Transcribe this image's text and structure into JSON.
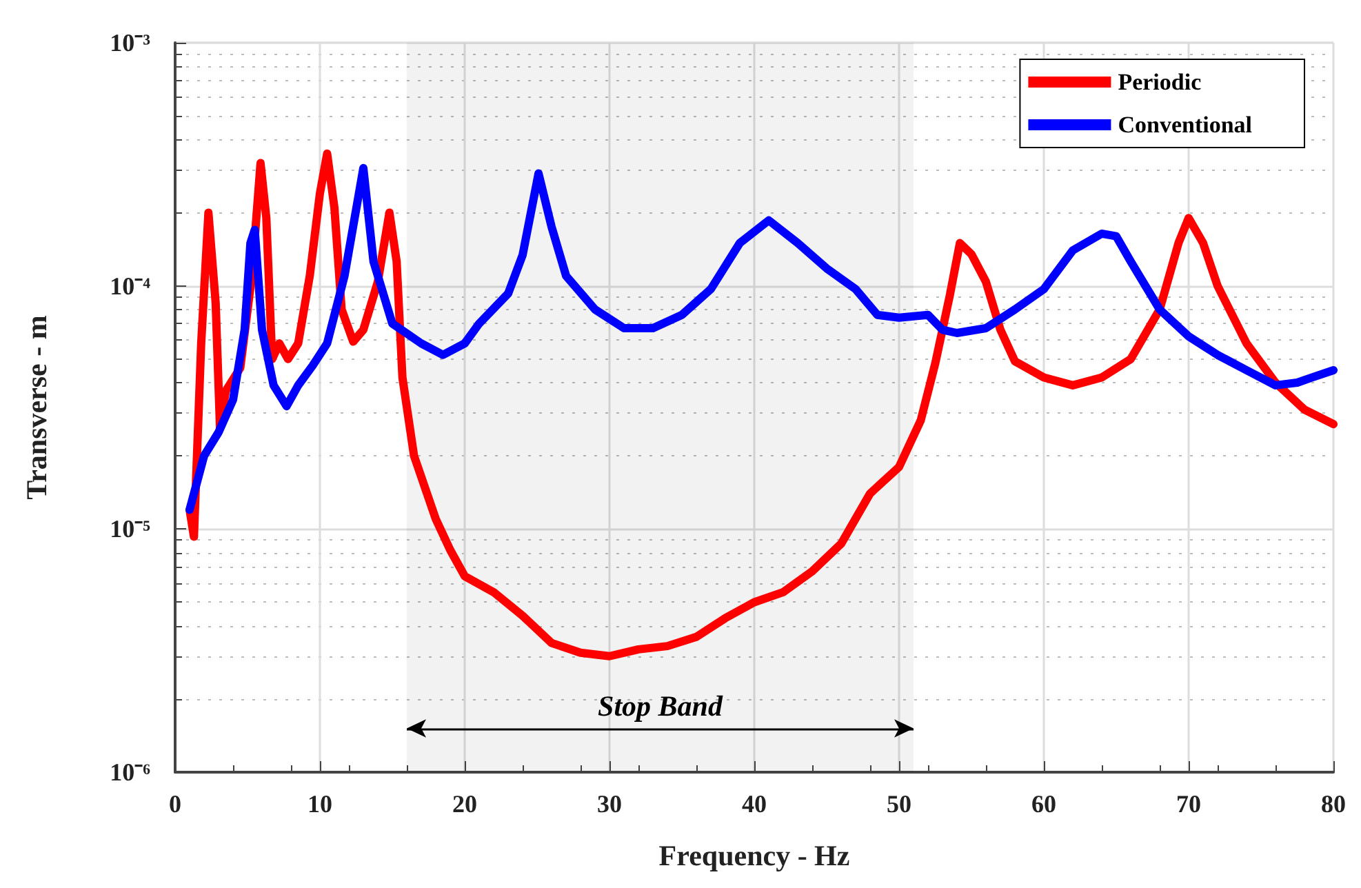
{
  "chart_data": {
    "type": "line",
    "xlabel": "Frequency - Hz",
    "ylabel": "Transverse - m",
    "log": "y",
    "grid": true,
    "legend": "top right",
    "line_style": "solid",
    "marker": "none",
    "xlim": [
      0,
      80
    ],
    "xticks": [
      0,
      10,
      20,
      30,
      40,
      50,
      60,
      70,
      80
    ],
    "ylim": [
      1e-06,
      0.001
    ],
    "yticks": [
      {
        "value": 1e-06,
        "label": "10⁻⁶"
      },
      {
        "value": 1e-05,
        "label": "10⁻⁵"
      },
      {
        "value": 0.0001,
        "label": "10⁻⁴"
      },
      {
        "value": 0.001,
        "label": "10⁻³"
      }
    ],
    "bands": [
      {
        "axis": "x",
        "from": 16,
        "to": 51,
        "label": "Stop Band",
        "color": "#000000"
      }
    ],
    "series": [
      {
        "name": "Periodic",
        "color": "#ff0000",
        "x": [
          1,
          1.3,
          1.8,
          2.3,
          2.8,
          3.1,
          3.5,
          4.5,
          5.3,
          5.9,
          6.3,
          6.7,
          7.2,
          7.8,
          8.5,
          9.3,
          10,
          10.5,
          11,
          11.5,
          12.3,
          13,
          14,
          14.8,
          15.3,
          15.7,
          16.5,
          18,
          19,
          20,
          22,
          24,
          26,
          28,
          30,
          32,
          34,
          36,
          38,
          40,
          42,
          44,
          46,
          48,
          50,
          51.5,
          52.5,
          53.5,
          54.2,
          55,
          56,
          57,
          58,
          60,
          62,
          64,
          66,
          68,
          69.3,
          70,
          71,
          72,
          74,
          76,
          78,
          80
        ],
        "values": [
          1.2e-05,
          9.3e-06,
          5.8e-05,
          0.0002,
          8.5e-05,
          2.6e-05,
          3.7e-05,
          4.6e-05,
          0.00011,
          0.00032,
          0.00019,
          5e-05,
          5.8e-05,
          5e-05,
          5.8e-05,
          0.00011,
          0.00024,
          0.00035,
          0.00021,
          8e-05,
          5.9e-05,
          6.6e-05,
          0.000104,
          0.0002,
          0.000126,
          4.2e-05,
          2e-05,
          1.1e-05,
          8.2e-06,
          6.4e-06,
          5.5e-06,
          4.4e-06,
          3.4e-06,
          3.1e-06,
          3e-06,
          3.2e-06,
          3.3e-06,
          3.6e-06,
          4.3e-06,
          5e-06,
          5.5e-06,
          6.7e-06,
          8.7e-06,
          1.4e-05,
          1.8e-05,
          2.8e-05,
          4.8e-05,
          9.1e-05,
          0.00015,
          0.000135,
          0.000104,
          6.6e-05,
          4.9e-05,
          4.2e-05,
          3.9e-05,
          4.2e-05,
          5e-05,
          8e-05,
          0.00015,
          0.00019,
          0.00015,
          0.0001,
          5.8e-05,
          4e-05,
          3.1e-05,
          2.7e-05
        ]
      },
      {
        "name": "Conventional",
        "color": "#0000ff",
        "x": [
          1,
          2,
          3,
          4,
          4.8,
          5.2,
          5.5,
          6,
          6.8,
          7.7,
          8.5,
          9.5,
          10.5,
          11.7,
          13,
          13.7,
          15,
          17,
          18.5,
          20,
          21,
          23,
          24,
          25.1,
          26,
          27,
          29,
          31,
          33,
          35,
          37,
          39,
          41,
          43,
          45,
          47,
          48.5,
          50,
          52,
          53,
          54,
          56,
          58,
          60,
          62,
          64,
          65,
          66,
          68,
          70,
          72,
          74,
          76,
          77.5,
          78.5,
          80
        ],
        "values": [
          1.2e-05,
          2e-05,
          2.5e-05,
          3.4e-05,
          6.6e-05,
          0.00015,
          0.00017,
          6.6e-05,
          3.9e-05,
          3.2e-05,
          3.9e-05,
          4.7e-05,
          5.8e-05,
          0.00011,
          0.000305,
          0.000126,
          7e-05,
          5.8e-05,
          5.2e-05,
          5.8e-05,
          7e-05,
          9.3e-05,
          0.000134,
          0.00029,
          0.000175,
          0.00011,
          8e-05,
          6.7e-05,
          6.7e-05,
          7.6e-05,
          9.7e-05,
          0.00015,
          0.000186,
          0.00015,
          0.000118,
          9.7e-05,
          7.6e-05,
          7.4e-05,
          7.6e-05,
          6.6e-05,
          6.4e-05,
          6.7e-05,
          8e-05,
          9.7e-05,
          0.00014,
          0.000164,
          0.00016,
          0.000126,
          8e-05,
          6.2e-05,
          5.2e-05,
          4.5e-05,
          3.9e-05,
          4e-05,
          4.2e-05,
          4.5e-05
        ]
      }
    ]
  }
}
